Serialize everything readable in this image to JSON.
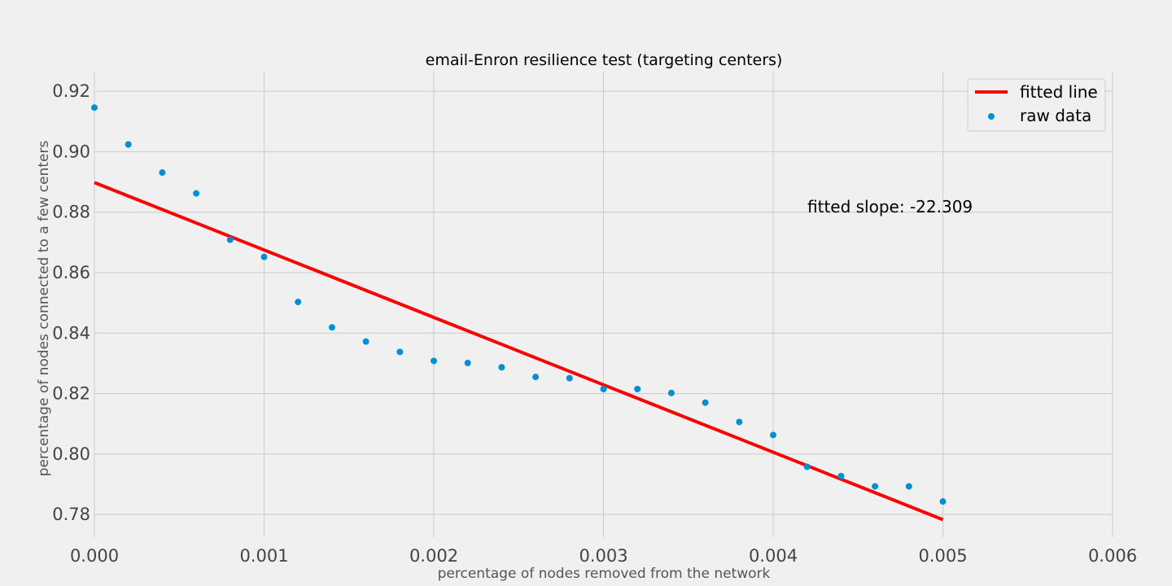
{
  "chart_data": {
    "type": "scatter",
    "title": "email-Enron resilience test (targeting centers)",
    "xlabel": "percentage of nodes removed from the network",
    "ylabel": "percentage of nodes connected to a few centers",
    "xlim": [
      0,
      0.006
    ],
    "ylim": [
      0.7725,
      0.9265
    ],
    "x_ticks": [
      0.0,
      0.001,
      0.002,
      0.003,
      0.004,
      0.005,
      0.006
    ],
    "x_tick_labels": [
      "0.000",
      "0.001",
      "0.002",
      "0.003",
      "0.004",
      "0.005",
      "0.006"
    ],
    "y_ticks": [
      0.78,
      0.8,
      0.82,
      0.84,
      0.86,
      0.88,
      0.9,
      0.92
    ],
    "y_tick_labels": [
      "0.78",
      "0.80",
      "0.82",
      "0.84",
      "0.86",
      "0.88",
      "0.90",
      "0.92"
    ],
    "grid": true,
    "legend_position": "top-right",
    "series": [
      {
        "name": "fitted line",
        "kind": "line",
        "color": "#ff0000",
        "x": [
          0.0,
          0.005
        ],
        "y": [
          0.8898,
          0.7783
        ]
      },
      {
        "name": "raw data",
        "kind": "scatter",
        "color": "#008fd5",
        "x": [
          0.0,
          0.0002,
          0.0004,
          0.0006,
          0.0008,
          0.001,
          0.0012,
          0.0014,
          0.0016,
          0.0018,
          0.002,
          0.0022,
          0.0024,
          0.0026,
          0.0028,
          0.003,
          0.0032,
          0.0034,
          0.0036,
          0.0038,
          0.004,
          0.0042,
          0.0044,
          0.0046,
          0.0048,
          0.005
        ],
        "y": [
          0.9146,
          0.9024,
          0.8931,
          0.8862,
          0.8709,
          0.8652,
          0.8503,
          0.8419,
          0.8372,
          0.8338,
          0.8308,
          0.8301,
          0.8287,
          0.8255,
          0.8251,
          0.8215,
          0.8215,
          0.8202,
          0.817,
          0.8106,
          0.8063,
          0.7958,
          0.7927,
          0.7893,
          0.7893,
          0.7843
        ]
      }
    ],
    "annotation": "fitted slope: -22.309"
  }
}
